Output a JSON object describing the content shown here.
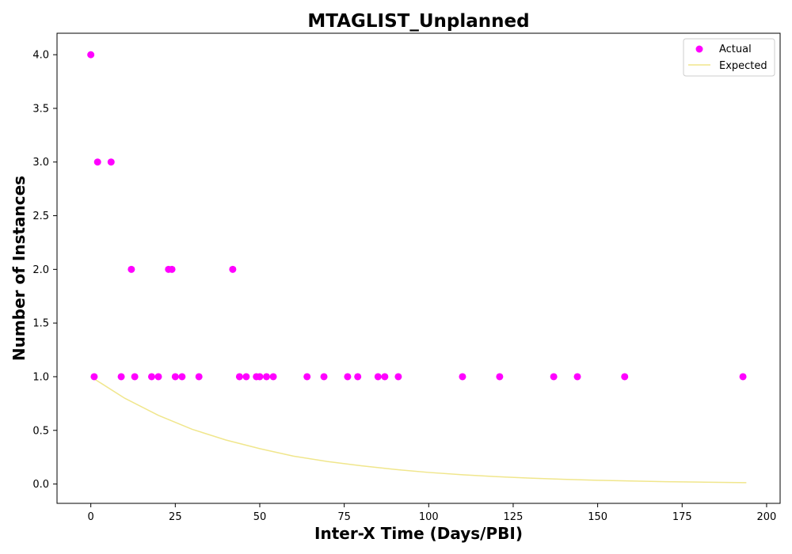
{
  "chart_data": {
    "type": "scatter",
    "title": "MTAGLIST_Unplanned",
    "xlabel": "Inter-X Time (Days/PBI)",
    "ylabel": "Number of Instances",
    "xlim": [
      -10,
      204
    ],
    "ylim": [
      -0.18,
      4.2
    ],
    "x_ticks": [
      0,
      25,
      50,
      75,
      100,
      125,
      150,
      175,
      200
    ],
    "y_ticks": [
      0.0,
      0.5,
      1.0,
      1.5,
      2.0,
      2.5,
      3.0,
      3.5,
      4.0
    ],
    "x_tick_labels": [
      "0",
      "25",
      "50",
      "75",
      "100",
      "125",
      "150",
      "175",
      "200"
    ],
    "y_tick_labels": [
      "0.0",
      "0.5",
      "1.0",
      "1.5",
      "2.0",
      "2.5",
      "3.0",
      "3.5",
      "4.0"
    ],
    "grid": false,
    "legend_position": "top-right",
    "series": [
      {
        "name": "Actual",
        "kind": "scatter",
        "color": "#ff00ff",
        "points": [
          [
            0,
            4
          ],
          [
            1,
            1
          ],
          [
            2,
            3
          ],
          [
            6,
            3
          ],
          [
            9,
            1
          ],
          [
            12,
            2
          ],
          [
            13,
            1
          ],
          [
            18,
            1
          ],
          [
            20,
            1
          ],
          [
            23,
            2
          ],
          [
            24,
            2
          ],
          [
            25,
            1
          ],
          [
            27,
            1
          ],
          [
            32,
            1
          ],
          [
            42,
            2
          ],
          [
            44,
            1
          ],
          [
            46,
            1
          ],
          [
            49,
            1
          ],
          [
            50,
            1
          ],
          [
            52,
            1
          ],
          [
            54,
            1
          ],
          [
            64,
            1
          ],
          [
            69,
            1
          ],
          [
            76,
            1
          ],
          [
            79,
            1
          ],
          [
            85,
            1
          ],
          [
            87,
            1
          ],
          [
            91,
            1
          ],
          [
            110,
            1
          ],
          [
            121,
            1
          ],
          [
            137,
            1
          ],
          [
            144,
            1
          ],
          [
            158,
            1
          ],
          [
            193,
            1
          ]
        ]
      },
      {
        "name": "Expected",
        "kind": "line",
        "color": "#f0e68c",
        "points": [
          [
            0,
            1.0
          ],
          [
            10,
            0.8
          ],
          [
            20,
            0.64
          ],
          [
            30,
            0.51
          ],
          [
            40,
            0.41
          ],
          [
            50,
            0.33
          ],
          [
            60,
            0.26
          ],
          [
            70,
            0.21
          ],
          [
            80,
            0.17
          ],
          [
            90,
            0.136
          ],
          [
            100,
            0.108
          ],
          [
            110,
            0.086
          ],
          [
            120,
            0.069
          ],
          [
            130,
            0.055
          ],
          [
            140,
            0.044
          ],
          [
            150,
            0.035
          ],
          [
            160,
            0.028
          ],
          [
            170,
            0.022
          ],
          [
            180,
            0.018
          ],
          [
            194,
            0.013
          ]
        ]
      }
    ]
  }
}
